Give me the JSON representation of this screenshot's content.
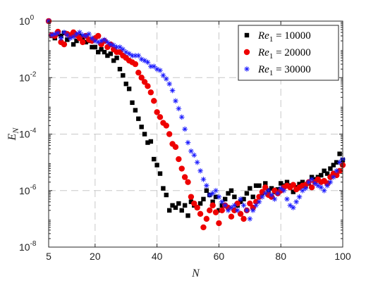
{
  "chart_data": {
    "type": "scatter",
    "title": "",
    "xlabel": "N",
    "ylabel": "E_N",
    "xlim": [
      5,
      100
    ],
    "ylim_log10": [
      -8,
      0
    ],
    "y_scale": "log",
    "grid": true,
    "legend_position": "top-right",
    "x_ticks": [
      {
        "v": 5,
        "label": "5"
      },
      {
        "v": 20,
        "label": "20"
      },
      {
        "v": 40,
        "label": "40"
      },
      {
        "v": 60,
        "label": "60"
      },
      {
        "v": 80,
        "label": "80"
      },
      {
        "v": 100,
        "label": "100"
      }
    ],
    "y_ticks": [
      {
        "exp": 0,
        "base": "10",
        "sup": "0"
      },
      {
        "exp": -2,
        "base": "10",
        "sup": "-2"
      },
      {
        "exp": -4,
        "base": "10",
        "sup": "-4"
      },
      {
        "exp": -6,
        "base": "10",
        "sup": "-6"
      },
      {
        "exp": -8,
        "base": "10",
        "sup": "-8"
      }
    ],
    "series": [
      {
        "name": "Re_1 = 10000",
        "legend_main": "Re",
        "legend_sub": "1",
        "legend_value": " = 10000",
        "marker": "square",
        "color": "#000000",
        "points": [
          [
            5,
            1.0
          ],
          [
            6,
            0.3
          ],
          [
            7,
            0.25
          ],
          [
            8,
            0.35
          ],
          [
            9,
            0.3
          ],
          [
            10,
            0.38
          ],
          [
            11,
            0.22
          ],
          [
            12,
            0.3
          ],
          [
            13,
            0.15
          ],
          [
            14,
            0.2
          ],
          [
            15,
            0.3
          ],
          [
            16,
            0.25
          ],
          [
            17,
            0.18
          ],
          [
            18,
            0.2
          ],
          [
            19,
            0.12
          ],
          [
            20,
            0.12
          ],
          [
            21,
            0.08
          ],
          [
            22,
            0.1
          ],
          [
            23,
            0.08
          ],
          [
            24,
            0.06
          ],
          [
            25,
            0.07
          ],
          [
            26,
            0.04
          ],
          [
            27,
            0.05
          ],
          [
            28,
            0.02
          ],
          [
            29,
            0.012
          ],
          [
            30,
            0.006
          ],
          [
            31,
            0.004
          ],
          [
            32,
            0.0013
          ],
          [
            33,
            0.0007
          ],
          [
            34,
            0.00035
          ],
          [
            35,
            0.00018
          ],
          [
            36,
            0.0001
          ],
          [
            37,
            5e-05
          ],
          [
            38,
            5.5e-05
          ],
          [
            39,
            1.3e-05
          ],
          [
            40,
            8e-06
          ],
          [
            41,
            4e-06
          ],
          [
            42,
            1.2e-06
          ],
          [
            43,
            7e-07
          ],
          [
            44,
            2e-07
          ],
          [
            45,
            3e-07
          ],
          [
            46,
            2.5e-07
          ],
          [
            47,
            3.5e-07
          ],
          [
            48,
            2e-07
          ],
          [
            49,
            3e-07
          ],
          [
            50,
            1.3e-07
          ],
          [
            51,
            4e-07
          ],
          [
            52,
            3e-07
          ],
          [
            53,
            2.5e-07
          ],
          [
            54,
            3.5e-07
          ],
          [
            55,
            5e-07
          ],
          [
            56,
            1e-06
          ],
          [
            57,
            7e-07
          ],
          [
            58,
            4e-07
          ],
          [
            59,
            6e-07
          ],
          [
            60,
            2e-07
          ],
          [
            61,
            3e-07
          ],
          [
            62,
            5e-07
          ],
          [
            63,
            8e-07
          ],
          [
            64,
            1e-06
          ],
          [
            65,
            6e-07
          ],
          [
            66,
            3e-07
          ],
          [
            67,
            4e-07
          ],
          [
            68,
            5e-07
          ],
          [
            69,
            8e-07
          ],
          [
            70,
            1.2e-06
          ],
          [
            71,
            6e-07
          ],
          [
            72,
            1.5e-06
          ],
          [
            73,
            1.5e-06
          ],
          [
            74,
            8e-07
          ],
          [
            75,
            1.8e-06
          ],
          [
            76,
            1e-06
          ],
          [
            77,
            1.2e-06
          ],
          [
            78,
            9e-07
          ],
          [
            79,
            1.1e-06
          ],
          [
            80,
            1.8e-06
          ],
          [
            81,
            1.5e-06
          ],
          [
            82,
            2e-06
          ],
          [
            83,
            1.5e-06
          ],
          [
            84,
            9e-07
          ],
          [
            85,
            1.3e-06
          ],
          [
            86,
            1.7e-06
          ],
          [
            87,
            2e-06
          ],
          [
            88,
            1.5e-06
          ],
          [
            89,
            1.8e-06
          ],
          [
            90,
            3e-06
          ],
          [
            91,
            2.5e-06
          ],
          [
            92,
            3e-06
          ],
          [
            93,
            3.5e-06
          ],
          [
            94,
            5e-06
          ],
          [
            95,
            4e-06
          ],
          [
            96,
            6e-06
          ],
          [
            97,
            8e-06
          ],
          [
            98,
            1e-05
          ],
          [
            99,
            2e-05
          ],
          [
            100,
            1.2e-05
          ]
        ]
      },
      {
        "name": "Re_1 = 20000",
        "legend_main": "Re",
        "legend_sub": "1",
        "legend_value": " = 20000",
        "marker": "circle",
        "color": "#ee0000",
        "points": [
          [
            5,
            1.0
          ],
          [
            6,
            0.32
          ],
          [
            7,
            0.3
          ],
          [
            8,
            0.42
          ],
          [
            9,
            0.18
          ],
          [
            10,
            0.15
          ],
          [
            11,
            0.35
          ],
          [
            12,
            0.32
          ],
          [
            13,
            0.4
          ],
          [
            14,
            0.32
          ],
          [
            15,
            0.25
          ],
          [
            16,
            0.18
          ],
          [
            17,
            0.3
          ],
          [
            18,
            0.22
          ],
          [
            19,
            0.2
          ],
          [
            20,
            0.25
          ],
          [
            21,
            0.3
          ],
          [
            22,
            0.15
          ],
          [
            23,
            0.2
          ],
          [
            24,
            0.12
          ],
          [
            25,
            0.15
          ],
          [
            26,
            0.1
          ],
          [
            27,
            0.08
          ],
          [
            28,
            0.08
          ],
          [
            29,
            0.06
          ],
          [
            30,
            0.05
          ],
          [
            31,
            0.04
          ],
          [
            32,
            0.035
          ],
          [
            33,
            0.03
          ],
          [
            34,
            0.015
          ],
          [
            35,
            0.01
          ],
          [
            36,
            0.007
          ],
          [
            37,
            0.005
          ],
          [
            38,
            0.003
          ],
          [
            39,
            0.0015
          ],
          [
            40,
            0.0006
          ],
          [
            41,
            0.0004
          ],
          [
            42,
            0.00025
          ],
          [
            43,
            0.0002
          ],
          [
            44,
            0.0001
          ],
          [
            45,
            4.5e-05
          ],
          [
            46,
            3.5e-05
          ],
          [
            47,
            1.3e-05
          ],
          [
            48,
            6e-06
          ],
          [
            49,
            3e-06
          ],
          [
            50,
            2e-06
          ],
          [
            51,
            6e-07
          ],
          [
            52,
            3.5e-07
          ],
          [
            53,
            2.5e-07
          ],
          [
            54,
            1.5e-07
          ],
          [
            55,
            5e-08
          ],
          [
            56,
            1e-07
          ],
          [
            57,
            2e-07
          ],
          [
            58,
            3e-07
          ],
          [
            59,
            1.7e-07
          ],
          [
            60,
            7e-08
          ],
          [
            61,
            2e-07
          ],
          [
            62,
            3e-07
          ],
          [
            63,
            2.5e-07
          ],
          [
            64,
            1.2e-07
          ],
          [
            65,
            2e-07
          ],
          [
            66,
            3.5e-07
          ],
          [
            67,
            1.5e-07
          ],
          [
            68,
            1e-07
          ],
          [
            69,
            2e-07
          ],
          [
            70,
            3.5e-07
          ],
          [
            71,
            2.5e-07
          ],
          [
            72,
            4e-07
          ],
          [
            73,
            6e-07
          ],
          [
            74,
            9e-07
          ],
          [
            75,
            1.3e-06
          ],
          [
            76,
            7e-07
          ],
          [
            77,
            6e-07
          ],
          [
            78,
            1e-06
          ],
          [
            79,
            8e-07
          ],
          [
            80,
            1e-06
          ],
          [
            81,
            1.3e-06
          ],
          [
            82,
            1.5e-06
          ],
          [
            83,
            1.3e-06
          ],
          [
            84,
            1.6e-06
          ],
          [
            85,
            1.1e-06
          ],
          [
            86,
            1.3e-06
          ],
          [
            87,
            1.5e-06
          ],
          [
            88,
            1.6e-06
          ],
          [
            89,
            2e-06
          ],
          [
            90,
            1.3e-06
          ],
          [
            91,
            2e-06
          ],
          [
            92,
            2.5e-06
          ],
          [
            93,
            2e-06
          ],
          [
            94,
            2.2e-06
          ],
          [
            95,
            1.8e-06
          ],
          [
            96,
            3e-06
          ],
          [
            97,
            4e-06
          ],
          [
            98,
            3.5e-06
          ],
          [
            99,
            5e-06
          ],
          [
            100,
            8e-06
          ]
        ]
      },
      {
        "name": "Re_1 = 30000",
        "legend_main": "Re",
        "legend_sub": "1",
        "legend_value": " = 30000",
        "marker": "asterisk",
        "color": "#1a1aff",
        "points": [
          [
            5,
            1.0
          ],
          [
            6,
            0.32
          ],
          [
            7,
            0.35
          ],
          [
            8,
            0.38
          ],
          [
            9,
            0.25
          ],
          [
            10,
            0.4
          ],
          [
            11,
            0.32
          ],
          [
            12,
            0.25
          ],
          [
            13,
            0.28
          ],
          [
            14,
            0.35
          ],
          [
            15,
            0.4
          ],
          [
            16,
            0.32
          ],
          [
            17,
            0.3
          ],
          [
            18,
            0.35
          ],
          [
            19,
            0.25
          ],
          [
            20,
            0.2
          ],
          [
            21,
            0.18
          ],
          [
            22,
            0.2
          ],
          [
            23,
            0.22
          ],
          [
            24,
            0.18
          ],
          [
            25,
            0.15
          ],
          [
            26,
            0.14
          ],
          [
            27,
            0.12
          ],
          [
            28,
            0.12
          ],
          [
            29,
            0.1
          ],
          [
            30,
            0.08
          ],
          [
            31,
            0.07
          ],
          [
            32,
            0.06
          ],
          [
            33,
            0.06
          ],
          [
            34,
            0.06
          ],
          [
            35,
            0.045
          ],
          [
            36,
            0.04
          ],
          [
            37,
            0.035
          ],
          [
            38,
            0.025
          ],
          [
            39,
            0.025
          ],
          [
            40,
            0.02
          ],
          [
            41,
            0.018
          ],
          [
            42,
            0.012
          ],
          [
            43,
            0.009
          ],
          [
            44,
            0.006
          ],
          [
            45,
            0.0035
          ],
          [
            46,
            0.0015
          ],
          [
            47,
            0.0008
          ],
          [
            48,
            0.0004
          ],
          [
            49,
            0.00015
          ],
          [
            50,
            5e-05
          ],
          [
            51,
            2.5e-05
          ],
          [
            52,
            1.8e-05
          ],
          [
            53,
            1e-05
          ],
          [
            54,
            5e-06
          ],
          [
            55,
            2.5e-06
          ],
          [
            56,
            1.5e-06
          ],
          [
            57,
            7e-07
          ],
          [
            58,
            8e-07
          ],
          [
            59,
            1e-06
          ],
          [
            60,
            6e-07
          ],
          [
            61,
            4e-07
          ],
          [
            62,
            3e-07
          ],
          [
            63,
            2e-07
          ],
          [
            64,
            2.5e-07
          ],
          [
            65,
            3e-07
          ],
          [
            66,
            2e-07
          ],
          [
            67,
            5e-07
          ],
          [
            68,
            3e-07
          ],
          [
            69,
            2e-07
          ],
          [
            70,
            1e-07
          ],
          [
            71,
            2e-07
          ],
          [
            72,
            3e-07
          ],
          [
            73,
            4e-07
          ],
          [
            74,
            6e-07
          ],
          [
            75,
            8e-07
          ],
          [
            76,
            1e-06
          ],
          [
            77,
            7e-07
          ],
          [
            78,
            5e-07
          ],
          [
            79,
            8e-07
          ],
          [
            80,
            1.2e-06
          ],
          [
            81,
            1e-06
          ],
          [
            82,
            5e-07
          ],
          [
            83,
            3e-07
          ],
          [
            84,
            2.5e-07
          ],
          [
            85,
            4e-07
          ],
          [
            86,
            6e-07
          ],
          [
            87,
            1e-06
          ],
          [
            88,
            1.2e-06
          ],
          [
            89,
            2e-06
          ],
          [
            90,
            2.5e-06
          ],
          [
            91,
            1.8e-06
          ],
          [
            92,
            1.5e-06
          ],
          [
            93,
            1.3e-06
          ],
          [
            94,
            1e-06
          ],
          [
            95,
            1.5e-06
          ],
          [
            96,
            2e-06
          ],
          [
            97,
            3e-06
          ],
          [
            98,
            5e-06
          ],
          [
            99,
            1e-05
          ],
          [
            100,
            1.3e-05
          ]
        ]
      }
    ]
  }
}
